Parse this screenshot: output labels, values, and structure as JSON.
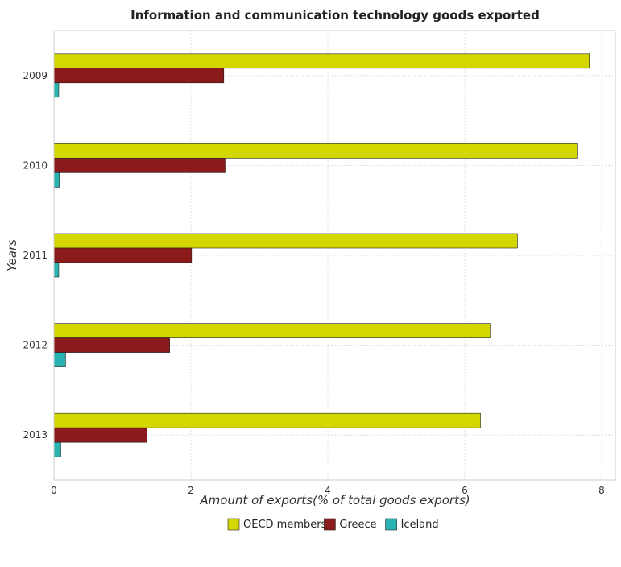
{
  "chart_data": {
    "type": "bar",
    "orientation": "horizontal",
    "title": "Information and communication technology goods exported",
    "xlabel": "Amount of exports(% of total goods exports)",
    "ylabel": "Years",
    "categories": [
      "2009",
      "2010",
      "2011",
      "2012",
      "2013"
    ],
    "series": [
      {
        "name": "OECD members",
        "color": "#d4d600",
        "values": [
          7.82,
          7.64,
          6.77,
          6.37,
          6.23
        ]
      },
      {
        "name": "Greece",
        "color": "#8b1a1a",
        "values": [
          2.48,
          2.5,
          2.01,
          1.69,
          1.36
        ]
      },
      {
        "name": "Iceland",
        "color": "#29b3b3",
        "values": [
          0.07,
          0.08,
          0.07,
          0.17,
          0.1
        ]
      }
    ],
    "xlim": [
      0,
      8.2
    ],
    "xticks": [
      0,
      2,
      4,
      6,
      8
    ],
    "xtick_labels": [
      "0",
      "2",
      "4",
      "6",
      "8"
    ],
    "grid": true,
    "legend_position": "bottom-center"
  }
}
